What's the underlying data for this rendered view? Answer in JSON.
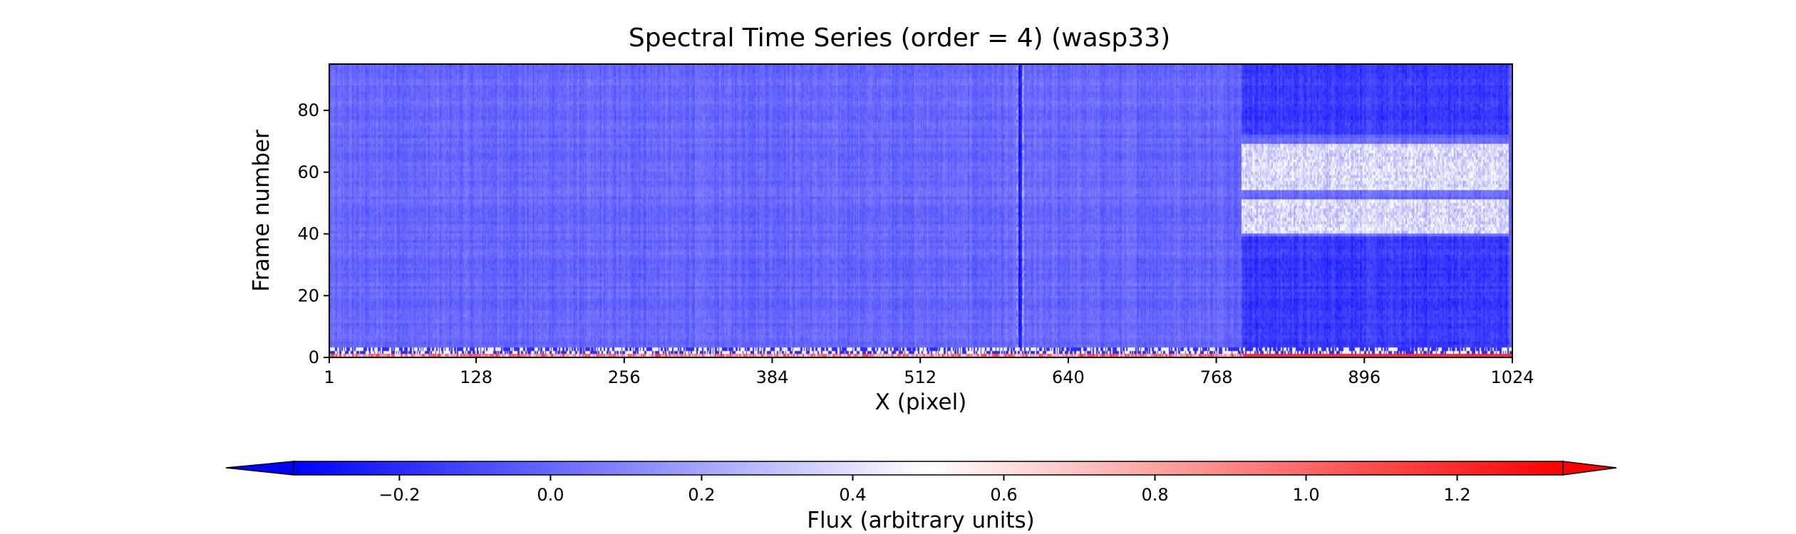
{
  "chart_data": {
    "type": "heatmap",
    "title": "Spectral Time Series (order = 4) (wasp33)",
    "xlabel": "X (pixel)",
    "ylabel": "Frame number",
    "xlim": [
      1,
      1024
    ],
    "ylim": [
      0,
      95
    ],
    "x_ticks": [
      1,
      128,
      256,
      384,
      512,
      640,
      768,
      896,
      1024
    ],
    "y_ticks": [
      0,
      20,
      40,
      60,
      80
    ],
    "x_tick_labels": [
      "1",
      "128",
      "256",
      "384",
      "512",
      "640",
      "768",
      "896",
      "1024"
    ],
    "y_tick_labels": [
      "0",
      "20",
      "40",
      "60",
      "80"
    ],
    "n_frames": 95,
    "n_pixels": 1024,
    "colorbar": {
      "label": "Flux (arbitrary units)",
      "colormap": "bwr",
      "vmin": -0.34,
      "vmax": 1.34,
      "extend": "both",
      "ticks": [
        -0.2,
        0.0,
        0.2,
        0.4,
        0.6,
        0.8,
        1.0,
        1.2
      ],
      "tick_labels": [
        "−0.2",
        "0.0",
        "0.2",
        "0.4",
        "0.6",
        "0.8",
        "1.0",
        "1.2"
      ],
      "orientation": "horizontal",
      "colors": {
        "low": "#0000ff",
        "mid": "#ffffff",
        "high": "#ff0000"
      }
    },
    "features": {
      "typical_flux": 0.0,
      "strong_column_x": 598,
      "telluric_region_x": [
        790,
        1020
      ],
      "telluric_bright_bands_frames": [
        [
          40,
          50
        ],
        [
          54,
          68
        ]
      ],
      "telluric_dark_bands_frames": [
        [
          2,
          38
        ],
        [
          72,
          95
        ]
      ],
      "bottom_row_frames": [
        0,
        2
      ]
    }
  }
}
